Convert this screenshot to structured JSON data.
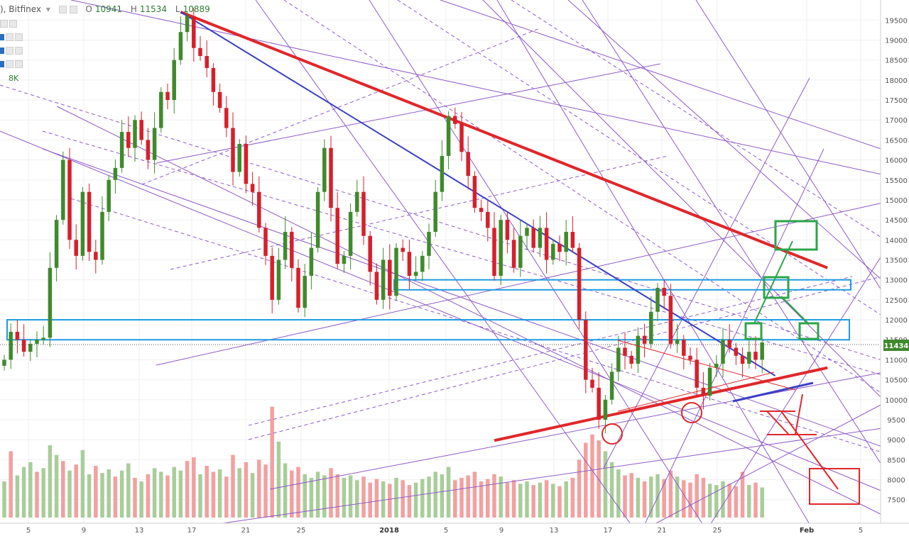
{
  "header": {
    "title": "), Bitfinex",
    "dropdown_icon": "caret-down-icon",
    "open_label": "O",
    "open_value": "10941",
    "high_label": "H",
    "high_value": "11534",
    "low_label": "L",
    "low_value": "10889"
  },
  "volume_label": "8K",
  "colors": {
    "up": "#3f8a2c",
    "down": "#d71f2b",
    "vol_up": "#a9cd9a",
    "vol_down": "#f3a0a0",
    "price_tag": "#3f8a2c"
  },
  "chart_data": {
    "type": "candlestick",
    "x_tick_labels": [
      "5",
      "9",
      "13",
      "17",
      "21",
      "25",
      "2018",
      "5",
      "9",
      "13",
      "17",
      "21",
      "25",
      "Feb",
      "5"
    ],
    "y_tick_labels": [
      7500,
      8000,
      8500,
      9000,
      9500,
      10000,
      10500,
      11000,
      11500,
      12000,
      12500,
      13000,
      13500,
      14000,
      14500,
      15000,
      15500,
      16000,
      16500,
      17000,
      17500,
      18000,
      18500,
      19000,
      19500
    ],
    "ylim": [
      7300,
      19700
    ],
    "last_price": "11434",
    "closes": [
      11000,
      11700,
      11500,
      11200,
      11400,
      11500,
      11550,
      13300,
      14500,
      16000,
      14000,
      13600,
      15200,
      13700,
      13500,
      14700,
      15500,
      15800,
      16700,
      16300,
      17000,
      16500,
      16000,
      16800,
      17700,
      17500,
      18500,
      19200,
      19600,
      18800,
      18600,
      18300,
      17700,
      17300,
      16800,
      15700,
      16400,
      15400,
      15200,
      14300,
      13600,
      12500,
      13500,
      14200,
      13300,
      12300,
      13100,
      13800,
      15200,
      16300,
      14800,
      13400,
      13600,
      14700,
      15200,
      14100,
      13200,
      12500,
      13500,
      12600,
      13800,
      13700,
      13100,
      13200,
      13600,
      14200,
      15200,
      16100,
      17100,
      16900,
      16200,
      15600,
      14800,
      14700,
      14300,
      13100,
      14500,
      14000,
      13300,
      14100,
      14300,
      13800,
      14300,
      13500,
      13900,
      13700,
      14200,
      13800,
      12000,
      10500,
      10300,
      9500,
      10000,
      10700,
      11300,
      11100,
      10900,
      11600,
      11400,
      12200,
      12800,
      12600,
      11400,
      11500,
      11100,
      11000,
      10300,
      10100,
      10800,
      10900,
      11500,
      11300,
      11100,
      10900,
      11200,
      11000,
      11434
    ],
    "volumes": [
      {
        "v": 3000,
        "up": true
      },
      {
        "v": 5500,
        "up": false
      },
      {
        "v": 3500,
        "up": true
      },
      {
        "v": 4200,
        "up": true
      },
      {
        "v": 4600,
        "up": true
      },
      {
        "v": 3800,
        "up": false
      },
      {
        "v": 4100,
        "up": true
      },
      {
        "v": 6000,
        "up": true
      },
      {
        "v": 5200,
        "up": true
      },
      {
        "v": 4700,
        "up": false
      },
      {
        "v": 3900,
        "up": true
      },
      {
        "v": 4400,
        "up": false
      },
      {
        "v": 5600,
        "up": true
      },
      {
        "v": 3600,
        "up": true
      },
      {
        "v": 4300,
        "up": false
      },
      {
        "v": 3700,
        "up": true
      },
      {
        "v": 4000,
        "up": true
      },
      {
        "v": 3400,
        "up": false
      },
      {
        "v": 3900,
        "up": true
      },
      {
        "v": 4500,
        "up": true
      },
      {
        "v": 3300,
        "up": false
      },
      {
        "v": 3000,
        "up": true
      },
      {
        "v": 3600,
        "up": false
      },
      {
        "v": 4100,
        "up": true
      },
      {
        "v": 3800,
        "up": true
      },
      {
        "v": 3500,
        "up": false
      },
      {
        "v": 4200,
        "up": true
      },
      {
        "v": 3900,
        "up": true
      },
      {
        "v": 4700,
        "up": false
      },
      {
        "v": 5000,
        "up": false
      },
      {
        "v": 3600,
        "up": true
      },
      {
        "v": 4300,
        "up": false
      },
      {
        "v": 3800,
        "up": false
      },
      {
        "v": 4000,
        "up": true
      },
      {
        "v": 3400,
        "up": false
      },
      {
        "v": 5200,
        "up": false
      },
      {
        "v": 4100,
        "up": true
      },
      {
        "v": 4600,
        "up": false
      },
      {
        "v": 3700,
        "up": true
      },
      {
        "v": 4800,
        "up": false
      },
      {
        "v": 4400,
        "up": false
      },
      {
        "v": 9200,
        "up": false
      },
      {
        "v": 6300,
        "up": true
      },
      {
        "v": 4500,
        "up": true
      },
      {
        "v": 3900,
        "up": false
      },
      {
        "v": 4200,
        "up": false
      },
      {
        "v": 3600,
        "up": true
      },
      {
        "v": 3300,
        "up": true
      },
      {
        "v": 3800,
        "up": true
      },
      {
        "v": 3500,
        "up": true
      },
      {
        "v": 4100,
        "up": false
      },
      {
        "v": 3600,
        "up": false
      },
      {
        "v": 3300,
        "up": true
      },
      {
        "v": 3500,
        "up": true
      },
      {
        "v": 3100,
        "up": true
      },
      {
        "v": 3400,
        "up": false
      },
      {
        "v": 2900,
        "up": false
      },
      {
        "v": 3200,
        "up": false
      },
      {
        "v": 3000,
        "up": true
      },
      {
        "v": 2800,
        "up": false
      },
      {
        "v": 3300,
        "up": true
      },
      {
        "v": 3100,
        "up": false
      },
      {
        "v": 2700,
        "up": false
      },
      {
        "v": 2900,
        "up": true
      },
      {
        "v": 3200,
        "up": true
      },
      {
        "v": 3400,
        "up": true
      },
      {
        "v": 3800,
        "up": true
      },
      {
        "v": 3600,
        "up": true
      },
      {
        "v": 4200,
        "up": true
      },
      {
        "v": 3100,
        "up": false
      },
      {
        "v": 3300,
        "up": false
      },
      {
        "v": 3500,
        "up": false
      },
      {
        "v": 3800,
        "up": false
      },
      {
        "v": 3000,
        "up": false
      },
      {
        "v": 3200,
        "up": false
      },
      {
        "v": 3600,
        "up": false
      },
      {
        "v": 3400,
        "up": true
      },
      {
        "v": 2900,
        "up": false
      },
      {
        "v": 3100,
        "up": false
      },
      {
        "v": 2800,
        "up": true
      },
      {
        "v": 3000,
        "up": true
      },
      {
        "v": 2700,
        "up": false
      },
      {
        "v": 2900,
        "up": true
      },
      {
        "v": 3100,
        "up": false
      },
      {
        "v": 2800,
        "up": true
      },
      {
        "v": 2600,
        "up": false
      },
      {
        "v": 3000,
        "up": true
      },
      {
        "v": 3300,
        "up": false
      },
      {
        "v": 4800,
        "up": false
      },
      {
        "v": 6200,
        "up": false
      },
      {
        "v": 6900,
        "up": false
      },
      {
        "v": 6400,
        "up": false
      },
      {
        "v": 5500,
        "up": true
      },
      {
        "v": 4600,
        "up": true
      },
      {
        "v": 4000,
        "up": true
      },
      {
        "v": 3500,
        "up": false
      },
      {
        "v": 3700,
        "up": false
      },
      {
        "v": 3300,
        "up": true
      },
      {
        "v": 3000,
        "up": false
      },
      {
        "v": 3400,
        "up": true
      },
      {
        "v": 3600,
        "up": true
      },
      {
        "v": 3200,
        "up": false
      },
      {
        "v": 3900,
        "up": false
      },
      {
        "v": 3400,
        "up": true
      },
      {
        "v": 3100,
        "up": false
      },
      {
        "v": 2900,
        "up": false
      },
      {
        "v": 3600,
        "up": false
      },
      {
        "v": 3300,
        "up": false
      },
      {
        "v": 2800,
        "up": true
      },
      {
        "v": 2700,
        "up": true
      },
      {
        "v": 3000,
        "up": true
      },
      {
        "v": 2800,
        "up": false
      },
      {
        "v": 2600,
        "up": false
      },
      {
        "v": 3800,
        "up": false
      },
      {
        "v": 2700,
        "up": true
      },
      {
        "v": 2900,
        "up": false
      },
      {
        "v": 2500,
        "up": true
      }
    ],
    "horizontal_zones": [
      {
        "low": 11500,
        "high": 12000,
        "color": "#1e9be0"
      },
      {
        "low": 12750,
        "high": 13000,
        "color": "#1e9be0"
      }
    ],
    "main_trendlines": [
      {
        "role": "red resistance",
        "color": "#e0262a",
        "p1": {
          "bar": 27,
          "price": 19700
        },
        "p2": {
          "bar": 126,
          "price": 13300
        }
      },
      {
        "role": "red support",
        "color": "#e0262a",
        "p1": {
          "bar": 75,
          "price": 8980
        },
        "p2": {
          "bar": 126,
          "price": 10800
        }
      },
      {
        "role": "blue resistance",
        "color": "#3a3fc4",
        "p1": {
          "bar": 27,
          "price": 19700
        },
        "p2": {
          "bar": 118,
          "price": 10600
        }
      }
    ]
  }
}
